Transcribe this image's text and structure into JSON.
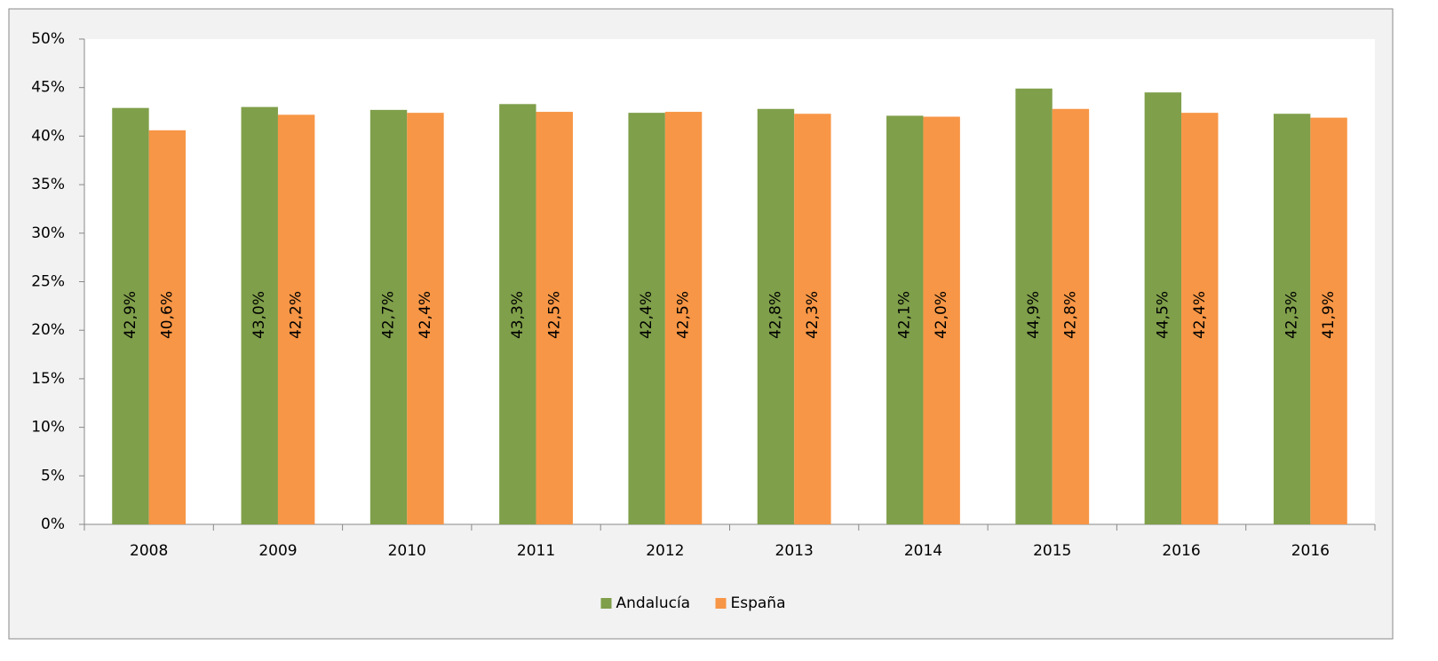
{
  "chart_data": {
    "type": "bar",
    "categories": [
      "2008",
      "2009",
      "2010",
      "2011",
      "2012",
      "2013",
      "2014",
      "2015",
      "2016",
      "2016"
    ],
    "series": [
      {
        "name": "Andalucía",
        "color": "#7f9f4a",
        "values": [
          42.9,
          43.0,
          42.7,
          43.3,
          42.4,
          42.8,
          42.1,
          44.9,
          44.5,
          42.3
        ],
        "value_labels": [
          "42,9%",
          "43,0%",
          "42,7%",
          "43,3%",
          "42,4%",
          "42,8%",
          "42,1%",
          "44,9%",
          "44,5%",
          "42,3%"
        ]
      },
      {
        "name": "España",
        "color": "#f79646",
        "values": [
          40.6,
          42.2,
          42.4,
          42.5,
          42.5,
          42.3,
          42.0,
          42.8,
          42.4,
          41.9
        ],
        "value_labels": [
          "40,6%",
          "42,2%",
          "42,4%",
          "42,5%",
          "42,5%",
          "42,3%",
          "42,0%",
          "42,8%",
          "42,4%",
          "41,9%"
        ]
      }
    ],
    "ylim": [
      0,
      50
    ],
    "yticks": [
      {
        "value": 0,
        "label": "0%"
      },
      {
        "value": 5,
        "label": "5%"
      },
      {
        "value": 10,
        "label": "10%"
      },
      {
        "value": 15,
        "label": "15%"
      },
      {
        "value": 20,
        "label": "20%"
      },
      {
        "value": 25,
        "label": "25%"
      },
      {
        "value": 30,
        "label": "30%"
      },
      {
        "value": 35,
        "label": "35%"
      },
      {
        "value": 40,
        "label": "40%"
      },
      {
        "value": 45,
        "label": "45%"
      },
      {
        "value": 50,
        "label": "50%"
      }
    ],
    "grid": false,
    "legend": "bottom"
  }
}
